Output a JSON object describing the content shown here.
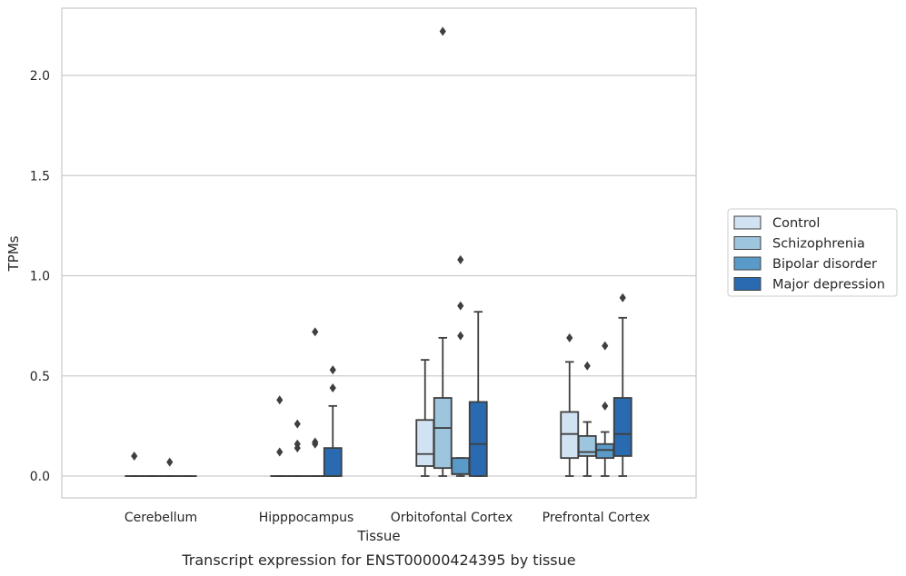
{
  "chart_data": {
    "type": "box",
    "caption": "Transcript expression for ENST00000424395 by tissue",
    "xlabel": "Tissue",
    "ylabel": "TPMs",
    "ylim": [
      -0.11,
      2.34
    ],
    "yticks": [
      0.0,
      0.5,
      1.0,
      1.5,
      2.0
    ],
    "ytick_labels": [
      "0.0",
      "0.5",
      "1.0",
      "1.5",
      "2.0"
    ],
    "grid": "horizontal",
    "legend_position": "right",
    "categories": [
      "Cerebellum",
      "Hipppocampus",
      "Orbitofontal Cortex",
      "Prefrontal Cortex"
    ],
    "series": [
      {
        "name": "Control",
        "color": "#d1e2f2",
        "boxes": [
          {
            "min": 0,
            "q1": 0,
            "median": 0,
            "q3": 0,
            "max": 0,
            "outliers": [
              0.1
            ]
          },
          {
            "min": 0,
            "q1": 0,
            "median": 0,
            "q3": 0,
            "max": 0,
            "outliers": [
              0.38,
              0.12
            ]
          },
          {
            "min": 0,
            "q1": 0.05,
            "median": 0.11,
            "q3": 0.28,
            "max": 0.58,
            "outliers": []
          },
          {
            "min": 0,
            "q1": 0.09,
            "median": 0.21,
            "q3": 0.32,
            "max": 0.57,
            "outliers": [
              0.69
            ]
          }
        ]
      },
      {
        "name": "Schizophrenia",
        "color": "#9dc5dd",
        "boxes": [
          {
            "min": 0,
            "q1": 0,
            "median": 0,
            "q3": 0,
            "max": 0,
            "outliers": []
          },
          {
            "min": 0,
            "q1": 0,
            "median": 0,
            "q3": 0,
            "max": 0,
            "outliers": [
              0.26,
              0.16,
              0.14
            ]
          },
          {
            "min": 0,
            "q1": 0.04,
            "median": 0.24,
            "q3": 0.39,
            "max": 0.69,
            "outliers": [
              2.22
            ]
          },
          {
            "min": 0,
            "q1": 0.1,
            "median": 0.12,
            "q3": 0.2,
            "max": 0.27,
            "outliers": [
              0.55
            ]
          }
        ]
      },
      {
        "name": "Bipolar disorder",
        "color": "#5a9ac9",
        "boxes": [
          {
            "min": 0,
            "q1": 0,
            "median": 0,
            "q3": 0,
            "max": 0,
            "outliers": [
              0.07
            ]
          },
          {
            "min": 0,
            "q1": 0,
            "median": 0,
            "q3": 0,
            "max": 0,
            "outliers": [
              0.72,
              0.17,
              0.16
            ]
          },
          {
            "min": 0,
            "q1": 0.01,
            "median": 0.01,
            "q3": 0.09,
            "max": 0.09,
            "outliers": [
              1.08,
              0.85,
              0.7
            ]
          },
          {
            "min": 0,
            "q1": 0.09,
            "median": 0.13,
            "q3": 0.16,
            "max": 0.22,
            "outliers": [
              0.65,
              0.35
            ]
          }
        ]
      },
      {
        "name": "Major depression",
        "color": "#2a6ab0",
        "boxes": [
          {
            "min": 0,
            "q1": 0,
            "median": 0,
            "q3": 0,
            "max": 0,
            "outliers": []
          },
          {
            "min": 0,
            "q1": 0,
            "median": 0,
            "q3": 0.14,
            "max": 0.35,
            "outliers": [
              0.53,
              0.44
            ]
          },
          {
            "min": 0,
            "q1": 0,
            "median": 0.16,
            "q3": 0.37,
            "max": 0.82,
            "outliers": []
          },
          {
            "min": 0,
            "q1": 0.1,
            "median": 0.21,
            "q3": 0.39,
            "max": 0.79,
            "outliers": [
              0.89
            ]
          }
        ]
      }
    ]
  }
}
